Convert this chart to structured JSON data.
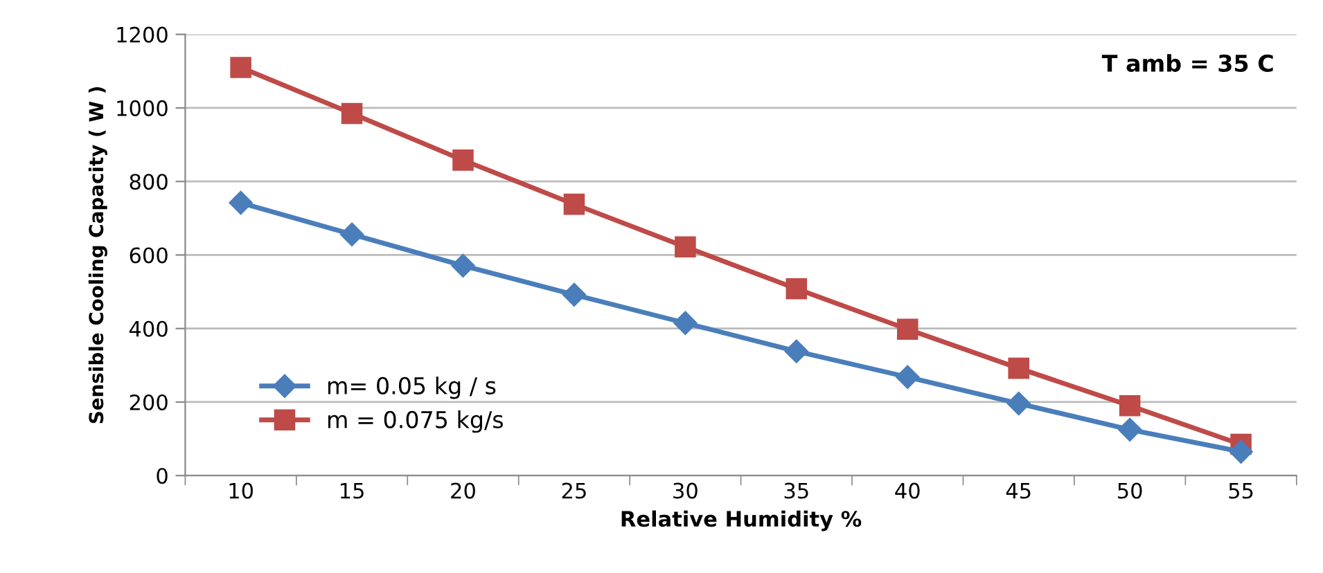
{
  "chart_data": {
    "type": "line",
    "xlabel": "Relative Humidity %",
    "ylabel": "Sensible Cooling Capacity ( W )",
    "categories": [
      "10",
      "15",
      "20",
      "25",
      "30",
      "35",
      "40",
      "45",
      "50",
      "55"
    ],
    "series": [
      {
        "name": "m= 0.05 kg / s",
        "color": "#4a7ebb",
        "marker": "diamond",
        "values": [
          742,
          656,
          571,
          492,
          415,
          338,
          268,
          196,
          125,
          65
        ]
      },
      {
        "name": "m = 0.075 kg/s",
        "color": "#be4b48",
        "marker": "square",
        "values": [
          1110,
          985,
          858,
          738,
          622,
          508,
          398,
          292,
          190,
          85
        ]
      }
    ],
    "ylim": [
      0,
      1200
    ],
    "yticks": [
      0,
      200,
      400,
      600,
      800,
      1000,
      1200
    ],
    "grid": "y",
    "legend": "bottom left",
    "annotations": [
      "T amb = 35 C"
    ]
  }
}
